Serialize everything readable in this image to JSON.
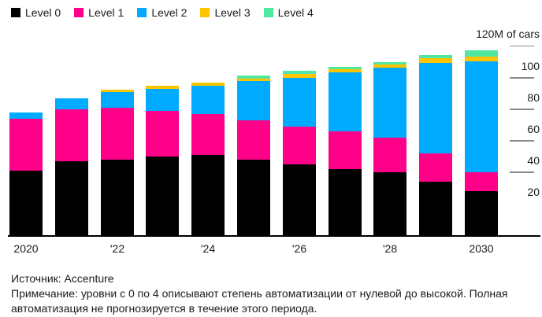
{
  "legend": {
    "items": [
      {
        "label": "Level 0",
        "color": "#000000"
      },
      {
        "label": "Level 1",
        "color": "#FF0088"
      },
      {
        "label": "Level 2",
        "color": "#00AAFF"
      },
      {
        "label": "Level 3",
        "color": "#FFC400"
      },
      {
        "label": "Level 4",
        "color": "#50E8A0"
      }
    ]
  },
  "footer": {
    "source": "Источник: Accenture",
    "note": "Примечание: уровни с 0 по 4 описывают степень автоматизации от нулевой до высокой. Полная автоматизация не прогнозируется в течение этого периода."
  },
  "chart_data": {
    "type": "bar",
    "stacked": true,
    "title": "",
    "ylabel": "120M of cars",
    "categories": [
      "2020",
      "2021",
      "2022",
      "2023",
      "2024",
      "2025",
      "2026",
      "2027",
      "2028",
      "2029",
      "2030"
    ],
    "series": [
      {
        "name": "Level 0",
        "color": "#000000",
        "values": [
          41,
          47,
          48,
          50,
          51,
          48,
          45,
          42,
          40,
          34,
          28
        ]
      },
      {
        "name": "Level 1",
        "color": "#FF0088",
        "values": [
          33,
          33,
          33,
          29,
          26,
          25,
          24,
          24,
          22,
          18,
          12
        ]
      },
      {
        "name": "Level 2",
        "color": "#00AAFF",
        "values": [
          4,
          7,
          10,
          14,
          18,
          25,
          31,
          37,
          44,
          57,
          70
        ]
      },
      {
        "name": "Level 3",
        "color": "#FFC400",
        "values": [
          0,
          0,
          1.5,
          2,
          2,
          1.5,
          2,
          2,
          2,
          3,
          3
        ]
      },
      {
        "name": "Level 4",
        "color": "#50E8A0",
        "values": [
          0,
          0,
          0,
          0,
          0,
          1.5,
          2,
          1.5,
          1.5,
          2,
          4
        ]
      }
    ],
    "totals": [
      78,
      87,
      92.5,
      95,
      97,
      101,
      104,
      106.5,
      109.5,
      114,
      117
    ],
    "ylim": [
      0,
      120
    ],
    "y_ticks": [
      {
        "value": 120,
        "label": "120M of cars",
        "line": true
      },
      {
        "value": 100,
        "label": "100",
        "line": true
      },
      {
        "value": 80,
        "label": "80",
        "line": true
      },
      {
        "value": 60,
        "label": "60",
        "line": true
      },
      {
        "value": 40,
        "label": "40",
        "line": true
      },
      {
        "value": 20,
        "label": "20",
        "line": false
      }
    ],
    "x_tick_labels": [
      {
        "index": 0,
        "label": "2020"
      },
      {
        "index": 2,
        "label": "'22"
      },
      {
        "index": 4,
        "label": "'24"
      },
      {
        "index": 6,
        "label": "'26"
      },
      {
        "index": 8,
        "label": "'28"
      },
      {
        "index": 10,
        "label": "2030"
      }
    ],
    "legend_position": "top",
    "grid": false
  }
}
